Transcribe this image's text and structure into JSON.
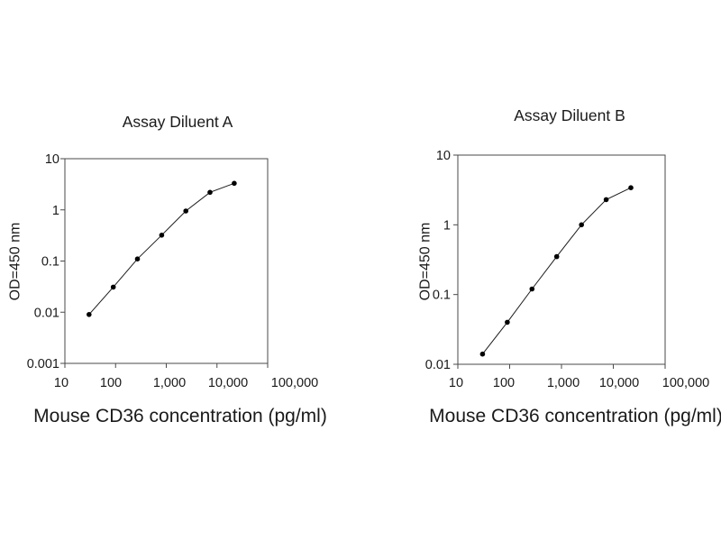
{
  "figure": {
    "background": "#ffffff",
    "text_color": "#1a1a1a",
    "axis_color": "#4a4a4a",
    "curve_color": "#1a1a1a",
    "marker_color": "#000000"
  },
  "chart_data": [
    {
      "type": "line",
      "title": "Assay Diluent A",
      "xlabel": "Mouse CD36 concentration (pg/ml)",
      "ylabel": "OD=450 nm",
      "x_scale": "log",
      "y_scale": "log",
      "xlim": [
        10,
        100000
      ],
      "ylim": [
        0.001,
        10
      ],
      "x_tick_labels": [
        "10",
        "100",
        "1,000",
        "10,000",
        "100,000"
      ],
      "y_tick_labels": [
        "10",
        "1",
        "0.1",
        "0.01",
        "0.001"
      ],
      "x": [
        30,
        90,
        270,
        810,
        2430,
        7290,
        21870
      ],
      "y": [
        0.009,
        0.031,
        0.11,
        0.32,
        0.95,
        2.2,
        3.3
      ],
      "marker": "filled-circle",
      "grid": false,
      "legend": null
    },
    {
      "type": "line",
      "title": "Assay Diluent B",
      "xlabel": "Mouse CD36 concentration (pg/ml)",
      "ylabel": "OD=450 nm",
      "x_scale": "log",
      "y_scale": "log",
      "xlim": [
        10,
        100000
      ],
      "ylim": [
        0.01,
        10
      ],
      "x_tick_labels": [
        "10",
        "100",
        "1,000",
        "10,000",
        "100,000"
      ],
      "y_tick_labels": [
        "10",
        "1",
        "0.1",
        "0.01"
      ],
      "x": [
        30,
        90,
        270,
        810,
        2430,
        7290,
        21870
      ],
      "y": [
        0.014,
        0.04,
        0.12,
        0.35,
        1.0,
        2.3,
        3.4
      ],
      "marker": "filled-circle",
      "grid": false,
      "legend": null
    }
  ]
}
